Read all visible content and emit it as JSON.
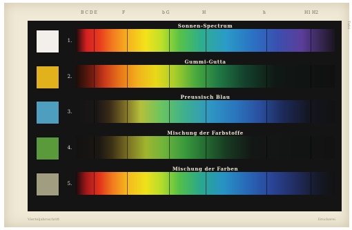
{
  "scale_top": [
    "B C D E",
    "F",
    "b G",
    "H",
    "h",
    "H1 H2"
  ],
  "rows": [
    {
      "number": "1.",
      "label": "Sonnen-Spectrum",
      "swatch_color": "#f3f0ec",
      "gradient": "linear-gradient(to right,#1a0a0a 0%,#d32020 4%,#e83a1e 9%,#f2791e 14%,#f6b21e 20%,#f3e21a 27%,#bfe028 33%,#58c247 40%,#2fae8a 48%,#2a9bc8 58%,#2a73c4 68%,#3a4fb0 78%,#5b3e9b 87%,#3a2958 94%,#1b1520 100%)"
    },
    {
      "number": "2.",
      "label": "Gummi-Gutta",
      "swatch_color": "#e1b21b",
      "gradient": "linear-gradient(to right,#1a0d08 0%,#6e1b0f 6%,#c9381a 11%,#e97519 17%,#f2b21c 24%,#e8d919 31%,#a9cf2a 38%,#4bab3d 46%,#207a45 55%,#14422c 65%,#101815 77%,#101010 100%)"
    },
    {
      "number": "3.",
      "label": "Preussisch Blau",
      "swatch_color": "#4e9ec0",
      "gradient": "linear-gradient(to right,#141414 0%,#1a1616 8%,#3a2a18 13%,#7e6f26 19%,#b5c03b 25%,#6bc45f 33%,#3fb08e 42%,#2e96c3 52%,#2a74bd 62%,#2a4f9e 71%,#1d2a5a 80%,#141620 90%,#121212 100%)"
    },
    {
      "number": "4.",
      "label": "Mischung der Farbstoffe",
      "swatch_color": "#5b9a3a",
      "gradient": "linear-gradient(to right,#121212 0%,#1b1712 9%,#3e3216 14%,#7a6f22 20%,#9fb52e 27%,#6fb43b 34%,#3a9a3c 42%,#246b32 50%,#183b22 58%,#131715 68%,#121212 100%)"
    },
    {
      "number": "5.",
      "label": "Mischung der Farben",
      "swatch_color": "#a19d80",
      "gradient": "linear-gradient(to right,#1a0a0a 0%,#a3181a 4%,#e2321b 9%,#f07a1d 14%,#f6ba1e 20%,#eee11a 27%,#b5dc2a 33%,#53bf49 40%,#2aa88c 48%,#2792c4 57%,#2869b8 66%,#2a469a 75%,#222e66 84%,#161a2a 93%,#121212 100%)"
    }
  ],
  "footer_left": "Vierteljahrsschrift",
  "footer_right": "Druckerei",
  "side_note": "Tafel"
}
